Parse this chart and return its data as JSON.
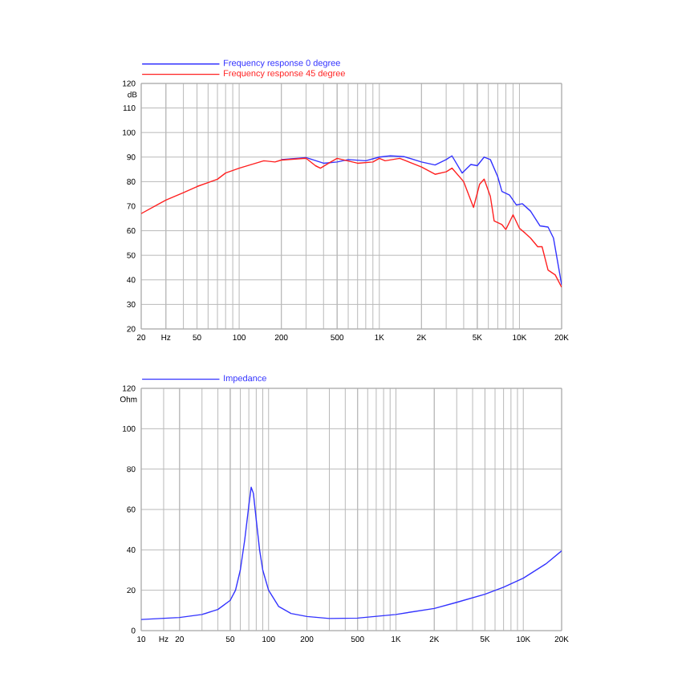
{
  "chart_data": [
    {
      "type": "line",
      "ylabel": "dB",
      "log": "x",
      "grid": true,
      "legend": "top left",
      "marker": "none",
      "line_style": "solid",
      "xlim": [
        20,
        20000
      ],
      "ylim": [
        20,
        120
      ],
      "xticks": [
        20,
        {
          "value": 30,
          "label": "Hz"
        },
        50,
        100,
        200,
        500,
        {
          "value": 1000,
          "label": "1K"
        },
        {
          "value": 2000,
          "label": "2K"
        },
        {
          "value": 5000,
          "label": "5K"
        },
        {
          "value": 10000,
          "label": "10K"
        },
        {
          "value": 20000,
          "label": "20K"
        }
      ],
      "yticks": [
        20,
        30,
        40,
        50,
        60,
        70,
        80,
        90,
        100,
        110,
        120
      ],
      "series": [
        {
          "name": "Frequency response 0 degree",
          "color": "#3333ff",
          "x": [
            200,
            300,
            400,
            500,
            600,
            800,
            1000,
            1200,
            1500,
            2000,
            2500,
            3000,
            3300,
            3900,
            4500,
            5000,
            5600,
            6200,
            7000,
            7500,
            8500,
            9500,
            10500,
            12000,
            14000,
            16000,
            17500,
            20000
          ],
          "values": [
            89,
            89.8,
            87.5,
            88,
            89,
            88.5,
            90,
            90.5,
            90.2,
            88,
            86.8,
            89,
            90.5,
            83.5,
            87,
            86.5,
            90,
            89,
            82,
            76,
            74.5,
            70.5,
            71,
            68,
            62,
            61.5,
            57,
            38
          ]
        },
        {
          "name": "Frequency response 45 degree",
          "color": "#ff2020",
          "x": [
            20,
            30,
            40,
            50,
            70,
            80,
            100,
            150,
            180,
            200,
            300,
            350,
            380,
            450,
            500,
            700,
            900,
            1000,
            1100,
            1400,
            2000,
            2500,
            3000,
            3300,
            4000,
            4700,
            5200,
            5600,
            6200,
            6600,
            7500,
            8000,
            9000,
            10000,
            11000,
            12000,
            13500,
            14500,
            16000,
            18000,
            20000
          ],
          "values": [
            67,
            72.5,
            75.5,
            78,
            81,
            83.5,
            85.5,
            88.5,
            88,
            88.8,
            89.5,
            86.5,
            85.5,
            88,
            89.5,
            87.5,
            88,
            89.5,
            88.5,
            89.5,
            86,
            83,
            84,
            85.5,
            80,
            69.5,
            79,
            81,
            74,
            64,
            62.5,
            60.5,
            66.5,
            61,
            59,
            57,
            53.5,
            53.5,
            44,
            42,
            37
          ]
        }
      ]
    },
    {
      "type": "line",
      "ylabel": "Ohm",
      "log": "x",
      "grid": true,
      "legend": "top left",
      "marker": "none",
      "line_style": "solid",
      "xlim": [
        10,
        20000
      ],
      "ylim": [
        0,
        120
      ],
      "xticks": [
        10,
        {
          "value": 15,
          "label": "Hz"
        },
        20,
        50,
        100,
        200,
        500,
        {
          "value": 1000,
          "label": "1K"
        },
        {
          "value": 2000,
          "label": "2K"
        },
        {
          "value": 5000,
          "label": "5K"
        },
        {
          "value": 10000,
          "label": "10K"
        },
        {
          "value": 20000,
          "label": "20K"
        }
      ],
      "yticks": [
        0,
        20,
        40,
        60,
        80,
        100,
        120
      ],
      "series": [
        {
          "name": "Impedance",
          "color": "#3333ff",
          "x": [
            10,
            20,
            30,
            40,
            50,
            55,
            60,
            65,
            70,
            73,
            76,
            80,
            85,
            90,
            100,
            120,
            150,
            200,
            300,
            500,
            1000,
            2000,
            3000,
            5000,
            7000,
            10000,
            15000,
            20000
          ],
          "values": [
            5.5,
            6.5,
            8,
            10.5,
            15,
            20,
            30,
            45,
            62,
            71,
            68,
            55,
            40,
            30,
            20,
            12,
            8.5,
            7,
            6,
            6.2,
            8,
            11,
            14,
            18,
            21.5,
            26,
            33,
            39.5
          ]
        }
      ]
    }
  ]
}
